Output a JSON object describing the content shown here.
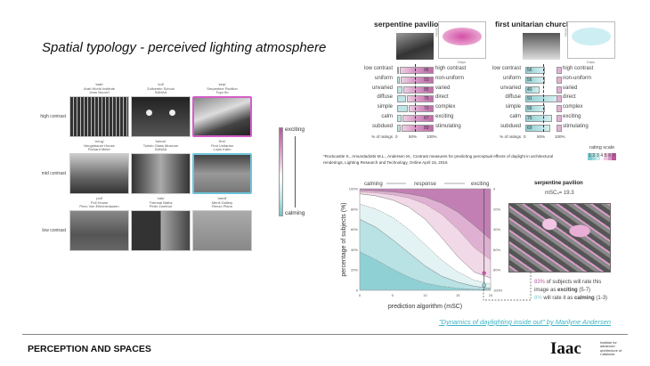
{
  "slide": {
    "title": "Spatial typology - perceived lighting atmosphere",
    "footer": "PERCEPTION AND SPACES",
    "link": "\"Dynamics of daylighting inside out\" by Marilyne Andersen",
    "logo": "Iaac",
    "logo_text": "Institute for advanced architecture of Catalonia"
  },
  "grid": {
    "rows": [
      "high contrast",
      "mid contrast",
      "low contrast"
    ],
    "images": [
      {
        "code": "'arab'",
        "name": "Arab World Institute",
        "architect": "Jean Nouvel"
      },
      {
        "code": "'zoll'",
        "name": "Zollverein School",
        "architect": "SANAA"
      },
      {
        "code": "'serp'",
        "name": "Serpentine Pavilion",
        "architect": "Toyo Ito"
      },
      {
        "code": "'neug'",
        "name": "Neugebauer House",
        "architect": "Richard Meier"
      },
      {
        "code": "'toledo'",
        "name": "Toledo Glass Museum",
        "architect": "SANAA"
      },
      {
        "code": "'first'",
        "name": "First Unitarian",
        "architect": "Louis Kahn"
      },
      {
        "code": "'poll'",
        "name": "Poll House",
        "architect": "Pezo Von Ellrichshausen"
      },
      {
        "code": "'vals'",
        "name": "Thermal Baths",
        "architect": "Peter Zumthor"
      },
      {
        "code": "'menil'",
        "name": "Menil Gallery",
        "architect": "Renzo Piano"
      }
    ],
    "scale_top": "exciting",
    "scale_bottom": "calming"
  },
  "ratings": {
    "left_labels": [
      "low contrast",
      "uniform",
      "unvaried",
      "diffuse",
      "simple",
      "calm",
      "subdued"
    ],
    "right_labels": [
      "high contrast",
      "non-uniform",
      "varied",
      "direct",
      "complex",
      "exciting",
      "stimulating"
    ],
    "axis_label": "% of ratings",
    "ticks": [
      "0",
      "50%",
      "100%"
    ],
    "hours": "Hours",
    "days": "Days",
    "panels": [
      {
        "title": "serpentine pavilion",
        "values": [
          96,
          93,
          85,
          75,
          70,
          87,
          89
        ],
        "side": "high"
      },
      {
        "title": "first unitarian church",
        "values": [
          56,
          56,
          40,
          91,
          56,
          75,
          69
        ],
        "side": "low"
      }
    ],
    "rating_scale_label": "rating scale",
    "scale_digits": [
      "1",
      "2",
      "3",
      "4",
      "5",
      "6",
      "7"
    ],
    "scale_colors": [
      "#7fcbd0",
      "#a5dadd",
      "#cdebed",
      "#ffffff",
      "#ebc6df",
      "#d79ac6",
      "#b9579f"
    ]
  },
  "citation": "*Rockcastle S., Amundadottir M.L., Andersen M., Contrast measures for predicting perceptual effects of daylight in architectural renderings, Lighting Research and Technology, Online April 15, 2016",
  "chart_data": {
    "type": "area",
    "header_left": "calming",
    "header_mid": "response",
    "header_right": "exciting",
    "xlabel": "prediction algorithm (mSC)",
    "ylabel": "percentage of subjects (%)",
    "x": [
      0,
      2.5,
      5,
      7.5,
      10,
      12.5,
      15,
      17.5,
      20
    ],
    "xlim": [
      0,
      20
    ],
    "ylim": [
      0,
      100
    ],
    "xticks": [
      "0",
      "5",
      "10",
      "15",
      "20"
    ],
    "yticks": [
      "0",
      "20%",
      "40%",
      "60%",
      "80%",
      "100%"
    ],
    "yticks_right": [
      "100%",
      "80%",
      "60%",
      "40%",
      "20%",
      "0"
    ],
    "boundaries": [
      [
        38,
        30,
        21,
        13,
        7,
        4,
        2,
        1,
        1
      ],
      [
        70,
        62,
        50,
        37,
        24,
        14,
        8,
        4,
        2
      ],
      [
        85,
        80,
        72,
        60,
        45,
        30,
        18,
        10,
        6
      ],
      [
        95,
        93,
        89,
        82,
        70,
        52,
        33,
        18,
        12
      ],
      [
        97,
        96,
        94,
        91,
        85,
        75,
        60,
        42,
        30
      ],
      [
        99,
        98,
        97,
        95,
        92,
        86,
        77,
        64,
        50
      ]
    ],
    "band_colors": [
      "#8fd0d4",
      "#b9e2e4",
      "#e3f3f4",
      "#ffffff",
      "#f2d9e8",
      "#dfb0d1",
      "#c27fb3"
    ],
    "marker_x": 19,
    "marker_exciting": 17,
    "marker_calming": 5
  },
  "example": {
    "title": "serpentine pavilion",
    "msc": "mSC₄= 19.3",
    "pct_exciting": "83%",
    "line1": " of subjects will rate this",
    "line2a": "image as ",
    "line2b": "exciting",
    "line2c": " (5-7)",
    "pct_calming": "8%",
    "line3a": " will rate it as ",
    "line3b": "calming",
    "line3c": " (1-3)"
  }
}
